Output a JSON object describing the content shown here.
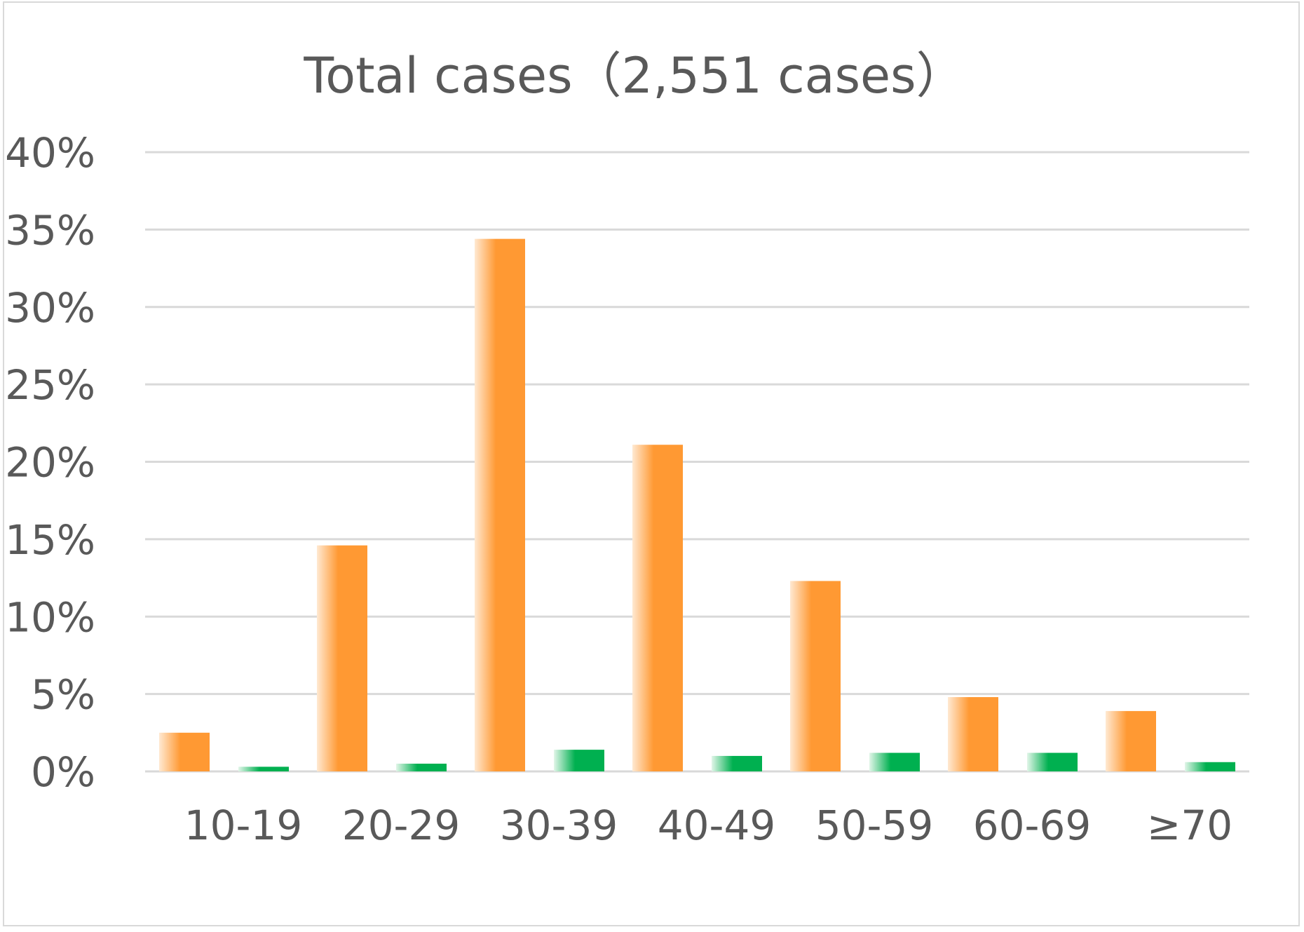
{
  "chart_data": {
    "type": "bar",
    "title": "Total cases（2,551 cases）",
    "xlabel": "",
    "ylabel": "",
    "categories": [
      "10-19",
      "20-29",
      "30-39",
      "40-49",
      "50-59",
      "60-69",
      "≥70"
    ],
    "series": [
      {
        "color": "#ff9933",
        "values": [
          2.5,
          14.6,
          34.4,
          21.1,
          12.3,
          4.8,
          3.9
        ]
      },
      {
        "color": "#00b050",
        "values": [
          0.3,
          0.5,
          1.4,
          1.0,
          1.2,
          1.2,
          0.6
        ]
      }
    ],
    "ylim": [
      0,
      40
    ],
    "yticks": [
      "0%",
      "5%",
      "10%",
      "15%",
      "20%",
      "25%",
      "30%",
      "35%",
      "40%"
    ],
    "ytick_values": [
      0,
      5,
      10,
      15,
      20,
      25,
      30,
      35,
      40
    ],
    "grid": true,
    "legend": "none"
  }
}
